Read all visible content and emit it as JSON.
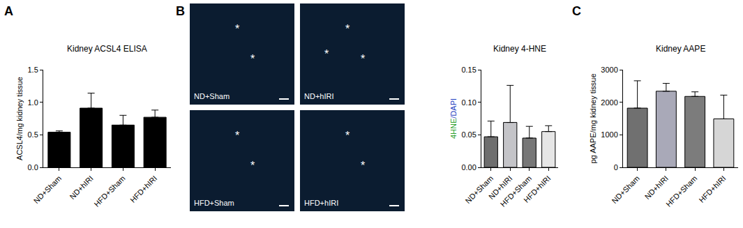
{
  "chart_data": [
    {
      "type": "bar",
      "panel": "A",
      "title": "Kidney ACSL4 ELISA",
      "ylabel": "ACSL4/mg kidney tissue",
      "categories": [
        "ND+Sham",
        "ND+hIRI",
        "HFD+Sham",
        "HFD+hIRI"
      ],
      "values": [
        0.54,
        0.91,
        0.65,
        0.77
      ],
      "errors": [
        0.02,
        0.23,
        0.15,
        0.11
      ],
      "color": "#000000",
      "ylim": [
        0,
        1.5
      ],
      "yticks": [
        {
          "value": 0,
          "label": "0.0"
        },
        {
          "value": 0.5,
          "label": "0.5"
        },
        {
          "value": 1,
          "label": "1.0"
        },
        {
          "value": 1.5,
          "label": "1.5"
        }
      ],
      "grid": false
    },
    {
      "type": "bar",
      "panel": "B",
      "title": "Kidney 4-HNE",
      "ylabel_parts": [
        {
          "text": "4HNE",
          "color": "#2ca02c"
        },
        {
          "text": "/DAPI",
          "color": "#1f3fbf"
        }
      ],
      "categories": [
        "ND+Sham",
        "ND+hIRI",
        "HFD+Sham",
        "HFD+hIRI"
      ],
      "values": [
        0.047,
        0.069,
        0.045,
        0.055
      ],
      "errors": [
        0.024,
        0.057,
        0.018,
        0.009
      ],
      "colors": [
        "#6e6e6e",
        "#c4c4c8",
        "#777777",
        "#e6e6e6"
      ],
      "ylim": [
        0,
        0.15
      ],
      "yticks": [
        {
          "value": 0,
          "label": "0.00"
        },
        {
          "value": 0.05,
          "label": "0.05"
        },
        {
          "value": 0.1,
          "label": "0.10"
        },
        {
          "value": 0.15,
          "label": "0.15"
        }
      ],
      "grid": false
    },
    {
      "type": "bar",
      "panel": "C",
      "title": "Kidney AAPE",
      "ylabel": "pg AAPE/mg kidney tissue",
      "categories": [
        "ND+Sham",
        "ND+hIRI",
        "HFD+Sham",
        "HFD+hIRI"
      ],
      "values": [
        1820,
        2340,
        2180,
        1490
      ],
      "errors": [
        840,
        240,
        140,
        730
      ],
      "colors": [
        "#707070",
        "#a9a9b8",
        "#7c7c7c",
        "#d6d6d6"
      ],
      "ylim": [
        0,
        3000
      ],
      "yticks": [
        0,
        1000,
        2000,
        3000
      ],
      "grid": false
    }
  ],
  "images": [
    {
      "label": "ND+Sham",
      "marks": [
        "*",
        "*"
      ]
    },
    {
      "label": "ND+hIRI",
      "marks": [
        "*",
        "*",
        "*"
      ]
    },
    {
      "label": "HFD+Sham",
      "marks": [
        "*",
        "*"
      ]
    },
    {
      "label": "HFD+hIRI",
      "marks": [
        "*",
        "*"
      ]
    }
  ]
}
